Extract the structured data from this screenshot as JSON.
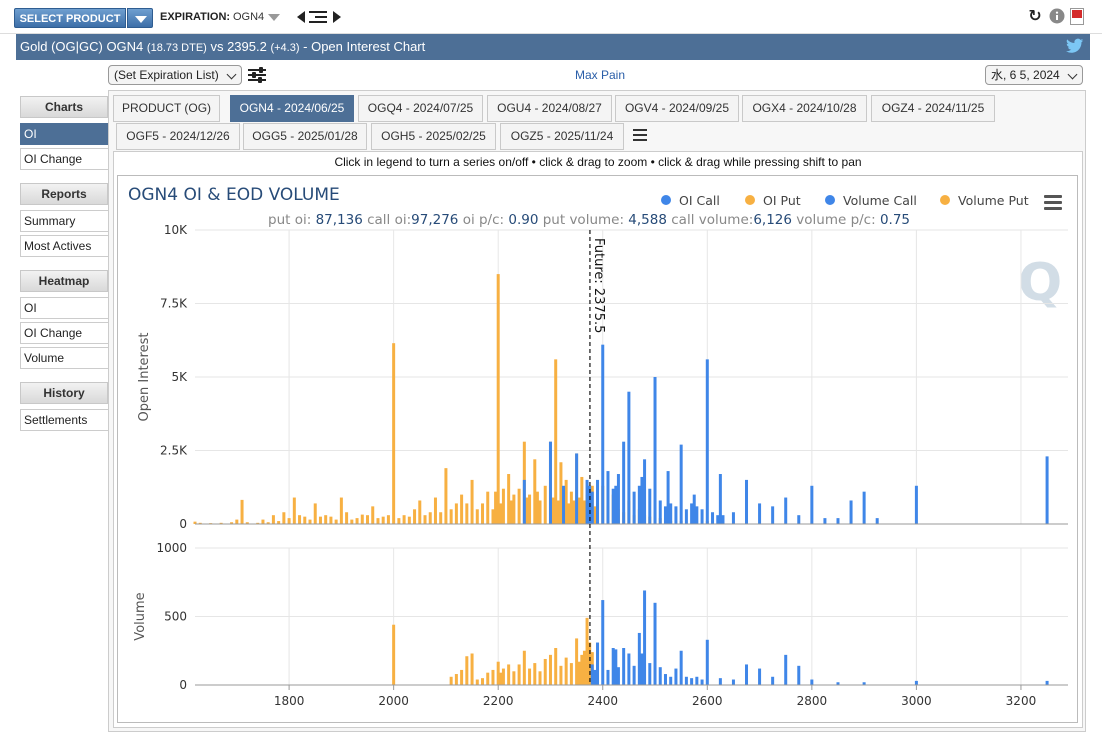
{
  "toolbar": {
    "select_product": "SELECT PRODUCT",
    "expiration_label": "EXPIRATION:",
    "expiration_value": "OGN4"
  },
  "titlebar": {
    "product": "Gold (OG|GC) OGN4",
    "dte": "(18.73 DTE)",
    "vs": "vs 2395.2",
    "change": "(+4.3)",
    "suffix": "- Open Interest Chart"
  },
  "controls": {
    "exp_list": "(Set Expiration List)",
    "max_pain": "Max Pain",
    "date": "水, 6 5, 2024"
  },
  "sidebar": {
    "sections": [
      {
        "title": "Charts",
        "items": [
          "OI",
          "OI Change"
        ],
        "active": 0
      },
      {
        "title": "Reports",
        "items": [
          "Summary",
          "Most Actives"
        ]
      },
      {
        "title": "Heatmap",
        "items": [
          "OI",
          "OI Change",
          "Volume"
        ]
      },
      {
        "title": "History",
        "items": [
          "Settlements"
        ]
      }
    ]
  },
  "tabs": {
    "row1": [
      "PRODUCT (OG)",
      "OGN4 - 2024/06/25",
      "OGQ4 - 2024/07/25",
      "OGU4 - 2024/08/27",
      "OGV4 - 2024/09/25",
      "OGX4 - 2024/10/28",
      "OGZ4 - 2024/11/25"
    ],
    "row2": [
      "OGF5 - 2024/12/26",
      "OGG5 - 2025/01/28",
      "OGH5 - 2025/02/25",
      "OGZ5 - 2025/11/24"
    ],
    "active": "OGN4 - 2024/06/25"
  },
  "chart_hint": "Click in legend to turn a series on/off • click & drag to zoom • click & drag while pressing shift to pan",
  "colors": {
    "call": "#3f86e8",
    "put": "#f7b042",
    "title_bar": "#4d6f96"
  },
  "chart_data": {
    "type": "bar",
    "title": "OGN4 OI & EOD VOLUME",
    "subtitle": {
      "put_oi_label": "put oi:",
      "put_oi": "87,136",
      "call_oi_label": "call oi:",
      "call_oi": "97,276",
      "oi_pc_label": "oi p/c:",
      "oi_pc": "0.90",
      "put_vol_label": "put volume:",
      "put_vol": "4,588",
      "call_vol_label": "call volume:",
      "call_vol": "6,126",
      "vol_pc_label": "volume p/c:",
      "vol_pc": "0.75"
    },
    "legend": [
      "OI Call",
      "OI Put",
      "Volume Call",
      "Volume Put"
    ],
    "legend_position": "top-right",
    "future_label": "Future: 2375.5",
    "future_value": 2375.5,
    "x_ticks": [
      1800,
      2000,
      2200,
      2400,
      2600,
      2800,
      3000,
      3200
    ],
    "x_range": [
      1620,
      3290
    ],
    "oi_axis": {
      "label": "Open Interest",
      "ticks": [
        "0",
        "2.5K",
        "5K",
        "7.5K",
        "10K"
      ],
      "tick_values": [
        0,
        2500,
        5000,
        7500,
        10000
      ],
      "range": [
        0,
        10000
      ]
    },
    "vol_axis": {
      "label": "Volume",
      "ticks": [
        "0",
        "500",
        "1000"
      ],
      "tick_values": [
        0,
        500,
        1000
      ],
      "range": [
        0,
        1000
      ]
    },
    "oi_put": [
      [
        1620,
        80
      ],
      [
        1630,
        40
      ],
      [
        1650,
        30
      ],
      [
        1670,
        40
      ],
      [
        1690,
        60
      ],
      [
        1700,
        150
      ],
      [
        1710,
        820
      ],
      [
        1720,
        60
      ],
      [
        1740,
        40
      ],
      [
        1750,
        150
      ],
      [
        1760,
        60
      ],
      [
        1770,
        300
      ],
      [
        1780,
        100
      ],
      [
        1790,
        400
      ],
      [
        1800,
        200
      ],
      [
        1810,
        900
      ],
      [
        1820,
        300
      ],
      [
        1830,
        250
      ],
      [
        1840,
        150
      ],
      [
        1850,
        700
      ],
      [
        1860,
        250
      ],
      [
        1870,
        300
      ],
      [
        1880,
        250
      ],
      [
        1890,
        150
      ],
      [
        1900,
        900
      ],
      [
        1910,
        400
      ],
      [
        1920,
        150
      ],
      [
        1930,
        200
      ],
      [
        1940,
        320
      ],
      [
        1950,
        300
      ],
      [
        1960,
        600
      ],
      [
        1970,
        200
      ],
      [
        1980,
        250
      ],
      [
        1990,
        300
      ],
      [
        2000,
        6150
      ],
      [
        2010,
        200
      ],
      [
        2020,
        300
      ],
      [
        2030,
        250
      ],
      [
        2040,
        500
      ],
      [
        2050,
        800
      ],
      [
        2060,
        300
      ],
      [
        2070,
        400
      ],
      [
        2080,
        900
      ],
      [
        2090,
        400
      ],
      [
        2100,
        1900
      ],
      [
        2110,
        500
      ],
      [
        2120,
        700
      ],
      [
        2130,
        1000
      ],
      [
        2140,
        700
      ],
      [
        2150,
        1500
      ],
      [
        2160,
        500
      ],
      [
        2170,
        700
      ],
      [
        2180,
        1100
      ],
      [
        2190,
        500
      ],
      [
        2195,
        1100
      ],
      [
        2200,
        8500
      ],
      [
        2205,
        700
      ],
      [
        2210,
        1200
      ],
      [
        2220,
        1700
      ],
      [
        2225,
        800
      ],
      [
        2230,
        1000
      ],
      [
        2240,
        1200
      ],
      [
        2250,
        2800
      ],
      [
        2255,
        900
      ],
      [
        2260,
        1000
      ],
      [
        2270,
        2200
      ],
      [
        2275,
        1100
      ],
      [
        2280,
        800
      ],
      [
        2290,
        1300
      ],
      [
        2300,
        2800
      ],
      [
        2305,
        900
      ],
      [
        2310,
        5600
      ],
      [
        2315,
        800
      ],
      [
        2320,
        2100
      ],
      [
        2325,
        1000
      ],
      [
        2330,
        1500
      ],
      [
        2335,
        700
      ],
      [
        2340,
        1100
      ],
      [
        2345,
        800
      ],
      [
        2350,
        2400
      ],
      [
        2355,
        900
      ],
      [
        2360,
        1600
      ],
      [
        2365,
        800
      ],
      [
        2370,
        1000
      ],
      [
        2375,
        500
      ],
      [
        2380,
        1300
      ],
      [
        2385,
        600
      ],
      [
        2390,
        700
      ],
      [
        2400,
        1300
      ],
      [
        2410,
        600
      ],
      [
        2420,
        1000
      ],
      [
        2430,
        500
      ],
      [
        2440,
        400
      ],
      [
        2450,
        800
      ],
      [
        2460,
        300
      ],
      [
        2470,
        500
      ],
      [
        2480,
        300
      ],
      [
        2490,
        250
      ],
      [
        2500,
        400
      ],
      [
        2510,
        200
      ],
      [
        2520,
        150
      ],
      [
        2530,
        100
      ],
      [
        2550,
        100
      ],
      [
        2600,
        100
      ]
    ],
    "oi_call": [
      [
        2250,
        1500
      ],
      [
        2300,
        2800
      ],
      [
        2325,
        1300
      ],
      [
        2350,
        2400
      ],
      [
        2370,
        1500
      ],
      [
        2375,
        1300
      ],
      [
        2380,
        1100
      ],
      [
        2390,
        1500
      ],
      [
        2400,
        6100
      ],
      [
        2410,
        1800
      ],
      [
        2420,
        1200
      ],
      [
        2425,
        1300
      ],
      [
        2430,
        1700
      ],
      [
        2440,
        2800
      ],
      [
        2450,
        4500
      ],
      [
        2460,
        1100
      ],
      [
        2470,
        1300
      ],
      [
        2475,
        1600
      ],
      [
        2480,
        2200
      ],
      [
        2490,
        1200
      ],
      [
        2500,
        5000
      ],
      [
        2510,
        800
      ],
      [
        2520,
        600
      ],
      [
        2525,
        1800
      ],
      [
        2530,
        700
      ],
      [
        2540,
        600
      ],
      [
        2550,
        2700
      ],
      [
        2560,
        500
      ],
      [
        2570,
        700
      ],
      [
        2575,
        1000
      ],
      [
        2580,
        600
      ],
      [
        2590,
        500
      ],
      [
        2600,
        5600
      ],
      [
        2610,
        400
      ],
      [
        2620,
        300
      ],
      [
        2625,
        1700
      ],
      [
        2630,
        300
      ],
      [
        2650,
        400
      ],
      [
        2675,
        1500
      ],
      [
        2700,
        700
      ],
      [
        2725,
        600
      ],
      [
        2750,
        900
      ],
      [
        2775,
        300
      ],
      [
        2800,
        1300
      ],
      [
        2825,
        200
      ],
      [
        2850,
        200
      ],
      [
        2875,
        800
      ],
      [
        2900,
        1100
      ],
      [
        2925,
        200
      ],
      [
        3000,
        1300
      ],
      [
        3250,
        2300
      ]
    ],
    "vol_put": [
      [
        2000,
        440
      ],
      [
        2110,
        60
      ],
      [
        2120,
        80
      ],
      [
        2130,
        110
      ],
      [
        2140,
        210
      ],
      [
        2150,
        230
      ],
      [
        2160,
        40
      ],
      [
        2170,
        50
      ],
      [
        2180,
        90
      ],
      [
        2190,
        110
      ],
      [
        2200,
        170
      ],
      [
        2205,
        90
      ],
      [
        2210,
        120
      ],
      [
        2220,
        150
      ],
      [
        2230,
        100
      ],
      [
        2240,
        150
      ],
      [
        2250,
        250
      ],
      [
        2260,
        120
      ],
      [
        2270,
        160
      ],
      [
        2280,
        100
      ],
      [
        2290,
        190
      ],
      [
        2300,
        220
      ],
      [
        2310,
        270
      ],
      [
        2320,
        140
      ],
      [
        2330,
        200
      ],
      [
        2340,
        160
      ],
      [
        2350,
        340
      ],
      [
        2355,
        170
      ],
      [
        2360,
        220
      ],
      [
        2365,
        250
      ],
      [
        2370,
        490
      ],
      [
        2375,
        310
      ],
      [
        2380,
        240
      ]
    ],
    "vol_call": [
      [
        2380,
        150
      ],
      [
        2385,
        110
      ],
      [
        2390,
        310
      ],
      [
        2400,
        620
      ],
      [
        2410,
        110
      ],
      [
        2420,
        270
      ],
      [
        2425,
        260
      ],
      [
        2430,
        130
      ],
      [
        2440,
        270
      ],
      [
        2450,
        230
      ],
      [
        2460,
        140
      ],
      [
        2470,
        380
      ],
      [
        2475,
        230
      ],
      [
        2480,
        690
      ],
      [
        2490,
        160
      ],
      [
        2500,
        600
      ],
      [
        2510,
        130
      ],
      [
        2520,
        80
      ],
      [
        2530,
        60
      ],
      [
        2540,
        120
      ],
      [
        2550,
        250
      ],
      [
        2560,
        60
      ],
      [
        2570,
        50
      ],
      [
        2580,
        60
      ],
      [
        2590,
        40
      ],
      [
        2600,
        330
      ],
      [
        2625,
        50
      ],
      [
        2650,
        40
      ],
      [
        2675,
        150
      ],
      [
        2700,
        120
      ],
      [
        2725,
        60
      ],
      [
        2750,
        220
      ],
      [
        2775,
        140
      ],
      [
        2800,
        40
      ],
      [
        2850,
        20
      ],
      [
        2900,
        20
      ],
      [
        3000,
        30
      ],
      [
        3250,
        30
      ]
    ]
  }
}
